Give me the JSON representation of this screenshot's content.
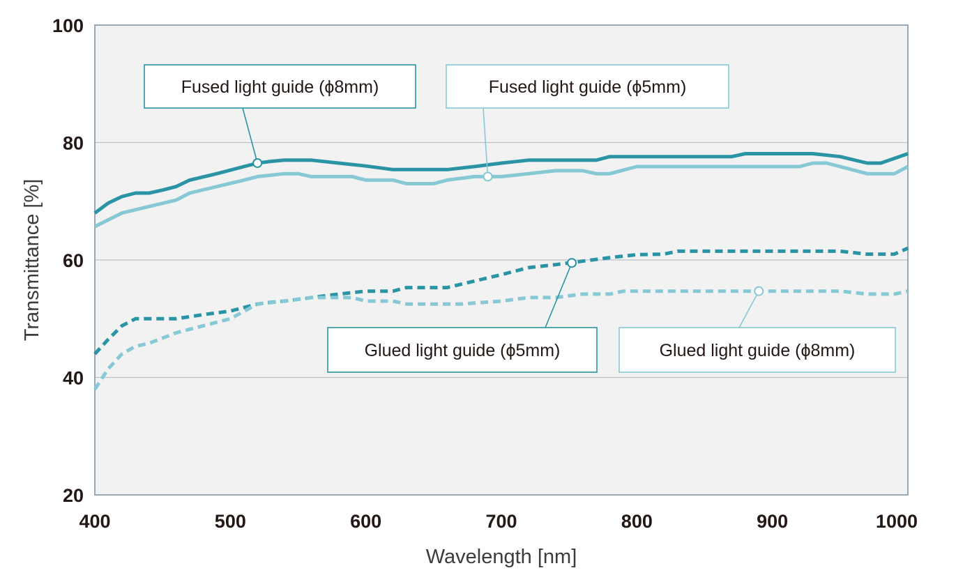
{
  "chart_data": {
    "type": "line",
    "title": "",
    "xlabel": "Wavelength [nm]",
    "ylabel": "Transmittance [%]",
    "xlim": [
      400,
      1000
    ],
    "ylim": [
      20,
      100
    ],
    "x_ticks": [
      "400",
      "500",
      "600",
      "700",
      "800",
      "900",
      "1000"
    ],
    "y_ticks": [
      "20",
      "40",
      "60",
      "80",
      "100"
    ],
    "grid": "horizontal",
    "series": [
      {
        "name": "Fused light guide (ϕ8mm)",
        "color": "#2a94a5",
        "style": "solid",
        "points": [
          [
            400,
            68.0
          ],
          [
            410,
            69.7
          ],
          [
            420,
            70.8
          ],
          [
            430,
            71.4
          ],
          [
            440,
            71.4
          ],
          [
            450,
            71.9
          ],
          [
            460,
            72.5
          ],
          [
            470,
            73.6
          ],
          [
            490,
            74.7
          ],
          [
            510,
            75.9
          ],
          [
            520,
            76.5
          ],
          [
            530,
            76.8
          ],
          [
            540,
            77.0
          ],
          [
            560,
            77.0
          ],
          [
            580,
            76.5
          ],
          [
            600,
            76.0
          ],
          [
            620,
            75.4
          ],
          [
            660,
            75.4
          ],
          [
            680,
            75.9
          ],
          [
            700,
            76.5
          ],
          [
            720,
            77.0
          ],
          [
            770,
            77.0
          ],
          [
            780,
            77.6
          ],
          [
            870,
            77.6
          ],
          [
            880,
            78.1
          ],
          [
            930,
            78.1
          ],
          [
            950,
            77.6
          ],
          [
            970,
            76.5
          ],
          [
            980,
            76.5
          ],
          [
            1000,
            78.1
          ]
        ]
      },
      {
        "name": "Fused light guide (ϕ5mm)",
        "color": "#86c8d4",
        "style": "solid",
        "points": [
          [
            400,
            65.7
          ],
          [
            420,
            68.0
          ],
          [
            440,
            69.1
          ],
          [
            460,
            70.2
          ],
          [
            470,
            71.4
          ],
          [
            490,
            72.5
          ],
          [
            510,
            73.6
          ],
          [
            520,
            74.2
          ],
          [
            540,
            74.7
          ],
          [
            550,
            74.7
          ],
          [
            560,
            74.2
          ],
          [
            590,
            74.2
          ],
          [
            600,
            73.6
          ],
          [
            620,
            73.6
          ],
          [
            630,
            73.0
          ],
          [
            650,
            73.0
          ],
          [
            660,
            73.6
          ],
          [
            680,
            74.2
          ],
          [
            700,
            74.2
          ],
          [
            720,
            74.7
          ],
          [
            740,
            75.2
          ],
          [
            760,
            75.2
          ],
          [
            770,
            74.7
          ],
          [
            780,
            74.7
          ],
          [
            800,
            75.9
          ],
          [
            920,
            75.9
          ],
          [
            930,
            76.5
          ],
          [
            940,
            76.5
          ],
          [
            950,
            75.9
          ],
          [
            970,
            74.7
          ],
          [
            990,
            74.7
          ],
          [
            1000,
            75.9
          ]
        ]
      },
      {
        "name": "Glued light guide (ϕ5mm)",
        "color": "#2a94a5",
        "style": "dashed",
        "points": [
          [
            400,
            44.0
          ],
          [
            410,
            46.5
          ],
          [
            420,
            48.8
          ],
          [
            430,
            50.0
          ],
          [
            460,
            50.0
          ],
          [
            480,
            50.7
          ],
          [
            500,
            51.3
          ],
          [
            510,
            51.9
          ],
          [
            520,
            52.5
          ],
          [
            530,
            52.8
          ],
          [
            540,
            53.0
          ],
          [
            560,
            53.6
          ],
          [
            580,
            54.2
          ],
          [
            600,
            54.7
          ],
          [
            620,
            54.7
          ],
          [
            630,
            55.3
          ],
          [
            660,
            55.3
          ],
          [
            680,
            56.4
          ],
          [
            700,
            57.5
          ],
          [
            720,
            58.7
          ],
          [
            740,
            59.2
          ],
          [
            760,
            59.8
          ],
          [
            780,
            60.4
          ],
          [
            800,
            60.9
          ],
          [
            820,
            61.0
          ],
          [
            830,
            61.5
          ],
          [
            950,
            61.5
          ],
          [
            970,
            61.0
          ],
          [
            990,
            61.0
          ],
          [
            1000,
            62.0
          ]
        ]
      },
      {
        "name": "Glued light guide (ϕ8mm)",
        "color": "#86c8d4",
        "style": "dashed",
        "points": [
          [
            400,
            38.0
          ],
          [
            410,
            41.5
          ],
          [
            420,
            44.0
          ],
          [
            430,
            45.3
          ],
          [
            440,
            45.8
          ],
          [
            460,
            47.6
          ],
          [
            480,
            48.8
          ],
          [
            500,
            50.0
          ],
          [
            520,
            52.5
          ],
          [
            540,
            53.0
          ],
          [
            560,
            53.6
          ],
          [
            590,
            53.6
          ],
          [
            600,
            53.0
          ],
          [
            620,
            53.0
          ],
          [
            630,
            52.5
          ],
          [
            670,
            52.5
          ],
          [
            700,
            53.0
          ],
          [
            720,
            53.6
          ],
          [
            740,
            53.6
          ],
          [
            760,
            54.2
          ],
          [
            780,
            54.2
          ],
          [
            790,
            54.7
          ],
          [
            950,
            54.7
          ],
          [
            970,
            54.2
          ],
          [
            990,
            54.2
          ],
          [
            1000,
            54.7
          ]
        ]
      }
    ],
    "annotations": [
      {
        "text": "Fused light guide (ϕ8mm)",
        "series": 0,
        "x": 520,
        "y": 76.5,
        "border": "#2a94a5"
      },
      {
        "text": "Fused light guide (ϕ5mm)",
        "series": 1,
        "x": 690,
        "y": 74.2,
        "border": "#86c8d4"
      },
      {
        "text": "Glued light guide (ϕ5mm)",
        "series": 2,
        "x": 752,
        "y": 59.5,
        "border": "#2a94a5"
      },
      {
        "text": "Glued light guide (ϕ8mm)",
        "series": 3,
        "x": 890,
        "y": 54.7,
        "border": "#86c8d4"
      }
    ],
    "colors": {
      "plot_background": "#f2f2f2",
      "frame": "#9aa9b6",
      "gridline": "#b8c3cc"
    }
  }
}
